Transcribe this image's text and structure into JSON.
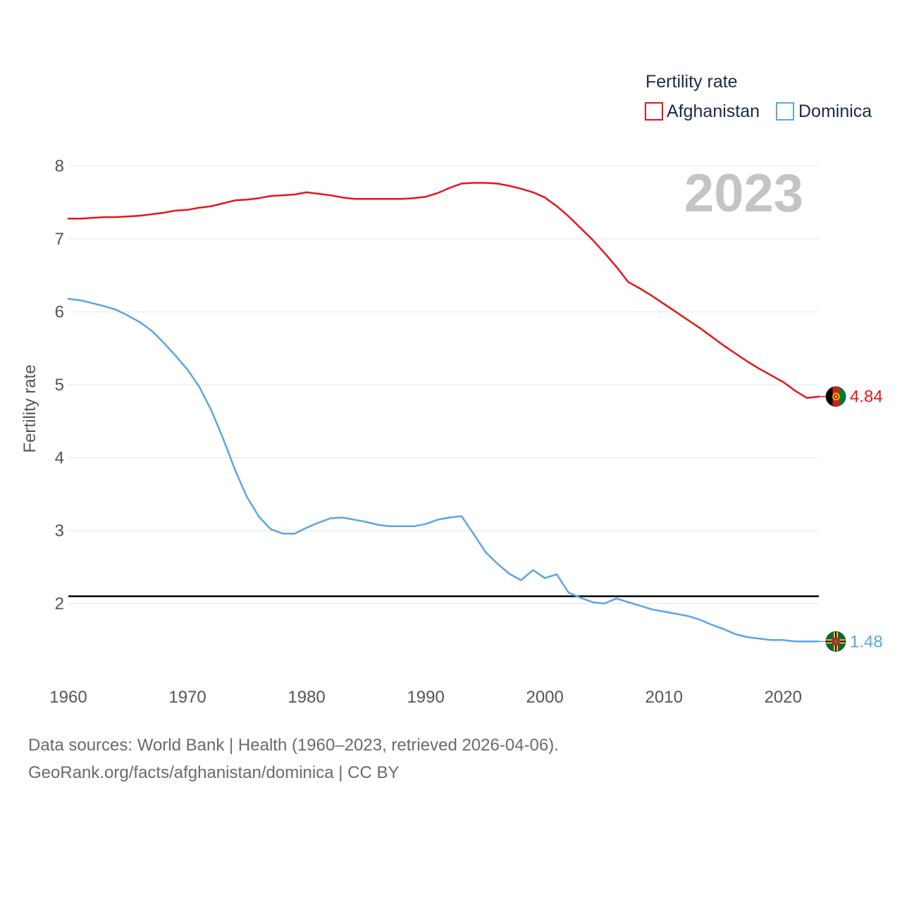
{
  "chart_data": {
    "type": "line",
    "legend_title": "Fertility rate",
    "ylabel": "Fertility rate",
    "xlabel": "",
    "year_label": "2023",
    "xlim": [
      1960,
      2023
    ],
    "ylim": [
      1,
      8.2
    ],
    "x_ticks": [
      1960,
      1970,
      1980,
      1990,
      2000,
      2010,
      2020
    ],
    "y_ticks": [
      2,
      3,
      4,
      5,
      6,
      7,
      8
    ],
    "grid": true,
    "legend_position": "top-right",
    "reference_line": {
      "y": 2.1
    },
    "x": [
      1960,
      1961,
      1962,
      1963,
      1964,
      1965,
      1966,
      1967,
      1968,
      1969,
      1970,
      1971,
      1972,
      1973,
      1974,
      1975,
      1976,
      1977,
      1978,
      1979,
      1980,
      1981,
      1982,
      1983,
      1984,
      1985,
      1986,
      1987,
      1988,
      1989,
      1990,
      1991,
      1992,
      1993,
      1994,
      1995,
      1996,
      1997,
      1998,
      1999,
      2000,
      2001,
      2002,
      2003,
      2004,
      2005,
      2006,
      2007,
      2008,
      2009,
      2010,
      2011,
      2012,
      2013,
      2014,
      2015,
      2016,
      2017,
      2018,
      2019,
      2020,
      2021,
      2022,
      2023
    ],
    "series": [
      {
        "name": "Afghanistan",
        "color": "#e8141b",
        "end_label": "4.84",
        "flag": "afghanistan-flag",
        "values": [
          7.28,
          7.28,
          7.29,
          7.3,
          7.3,
          7.31,
          7.32,
          7.34,
          7.36,
          7.39,
          7.4,
          7.43,
          7.45,
          7.49,
          7.53,
          7.54,
          7.56,
          7.59,
          7.6,
          7.61,
          7.64,
          7.62,
          7.6,
          7.57,
          7.55,
          7.55,
          7.55,
          7.55,
          7.55,
          7.56,
          7.58,
          7.63,
          7.7,
          7.76,
          7.77,
          7.77,
          7.76,
          7.73,
          7.69,
          7.64,
          7.57,
          7.45,
          7.31,
          7.15,
          6.99,
          6.81,
          6.62,
          6.41,
          6.32,
          6.22,
          6.11,
          6.0,
          5.89,
          5.78,
          5.66,
          5.54,
          5.43,
          5.32,
          5.22,
          5.13,
          5.04,
          4.92,
          4.82,
          4.84
        ]
      },
      {
        "name": "Dominica",
        "color": "#5aa5e6",
        "end_label": "1.48",
        "flag": "dominica-flag",
        "values": [
          6.18,
          6.16,
          6.12,
          6.08,
          6.03,
          5.95,
          5.86,
          5.74,
          5.58,
          5.4,
          5.21,
          4.97,
          4.65,
          4.26,
          3.83,
          3.46,
          3.19,
          3.02,
          2.96,
          2.96,
          3.04,
          3.11,
          3.17,
          3.18,
          3.15,
          3.12,
          3.08,
          3.06,
          3.06,
          3.06,
          3.09,
          3.15,
          3.18,
          3.2,
          2.96,
          2.71,
          2.55,
          2.41,
          2.32,
          2.46,
          2.35,
          2.4,
          2.15,
          2.08,
          2.02,
          2.0,
          2.07,
          2.02,
          1.97,
          1.92,
          1.89,
          1.86,
          1.83,
          1.78,
          1.71,
          1.65,
          1.58,
          1.54,
          1.52,
          1.5,
          1.5,
          1.48,
          1.48,
          1.48
        ]
      }
    ]
  },
  "footer": {
    "line1": "Data sources: World Bank | Health (1960–2023, retrieved 2026-04-06).",
    "line2": "GeoRank.org/facts/afghanistan/dominica | CC BY"
  }
}
